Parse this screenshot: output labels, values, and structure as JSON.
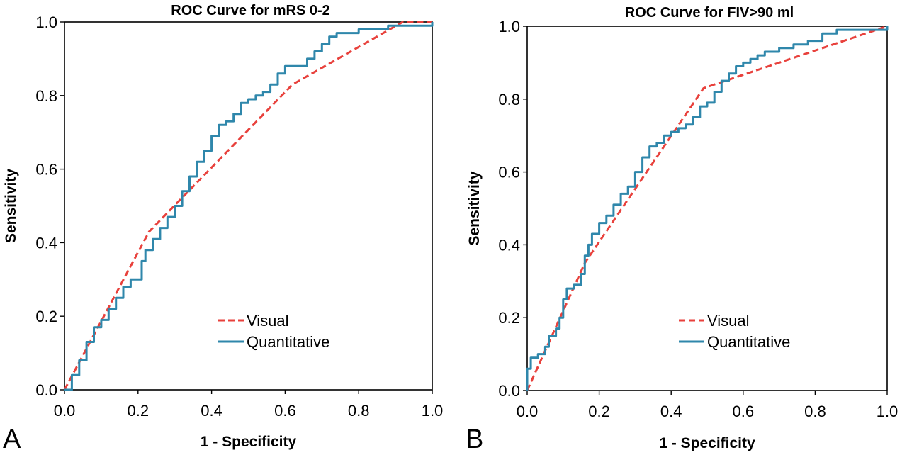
{
  "chart_data": [
    {
      "type": "line",
      "panel_label": "A",
      "title": "ROC Curve for mRS 0-2",
      "xlabel": "1 - Specificity",
      "ylabel": "Sensitivity",
      "xlim": [
        0,
        1
      ],
      "ylim": [
        0,
        1
      ],
      "x_ticks": [
        "0.0",
        "0.2",
        "0.4",
        "0.6",
        "0.8",
        "1.0"
      ],
      "y_ticks": [
        "0.0",
        "0.2",
        "0.4",
        "0.6",
        "0.8",
        "1.0"
      ],
      "legend_position": "bottom-right",
      "grid": false,
      "series": [
        {
          "name": "Visual",
          "color": "#e8413c",
          "style": "dashed",
          "points": [
            [
              0,
              0
            ],
            [
              0.23,
              0.43
            ],
            [
              0.62,
              0.83
            ],
            [
              0.92,
              1.0
            ],
            [
              1.0,
              1.0
            ]
          ]
        },
        {
          "name": "Quantitative",
          "color": "#2f87ab",
          "style": "step",
          "points": [
            [
              0,
              0
            ],
            [
              0.02,
              0.04
            ],
            [
              0.04,
              0.08
            ],
            [
              0.06,
              0.13
            ],
            [
              0.08,
              0.17
            ],
            [
              0.1,
              0.19
            ],
            [
              0.12,
              0.22
            ],
            [
              0.14,
              0.25
            ],
            [
              0.16,
              0.28
            ],
            [
              0.18,
              0.3
            ],
            [
              0.2,
              0.3
            ],
            [
              0.21,
              0.35
            ],
            [
              0.22,
              0.38
            ],
            [
              0.24,
              0.41
            ],
            [
              0.26,
              0.44
            ],
            [
              0.28,
              0.47
            ],
            [
              0.3,
              0.5
            ],
            [
              0.32,
              0.54
            ],
            [
              0.34,
              0.58
            ],
            [
              0.36,
              0.62
            ],
            [
              0.38,
              0.65
            ],
            [
              0.4,
              0.69
            ],
            [
              0.42,
              0.72
            ],
            [
              0.44,
              0.73
            ],
            [
              0.46,
              0.75
            ],
            [
              0.48,
              0.78
            ],
            [
              0.5,
              0.79
            ],
            [
              0.52,
              0.8
            ],
            [
              0.54,
              0.81
            ],
            [
              0.56,
              0.83
            ],
            [
              0.58,
              0.86
            ],
            [
              0.6,
              0.88
            ],
            [
              0.62,
              0.88
            ],
            [
              0.64,
              0.88
            ],
            [
              0.66,
              0.9
            ],
            [
              0.68,
              0.92
            ],
            [
              0.7,
              0.94
            ],
            [
              0.72,
              0.96
            ],
            [
              0.74,
              0.97
            ],
            [
              0.76,
              0.97
            ],
            [
              0.8,
              0.98
            ],
            [
              0.88,
              0.99
            ],
            [
              0.96,
              0.99
            ],
            [
              1.0,
              1.0
            ]
          ]
        }
      ]
    },
    {
      "type": "line",
      "panel_label": "B",
      "title": "ROC Curve for FIV>90 ml",
      "xlabel": "1 - Specificity",
      "ylabel": "Sensitivity",
      "xlim": [
        0,
        1
      ],
      "ylim": [
        0,
        1
      ],
      "x_ticks": [
        "0.0",
        "0.2",
        "0.4",
        "0.6",
        "0.8",
        "1.0"
      ],
      "y_ticks": [
        "0.0",
        "0.2",
        "0.4",
        "0.6",
        "0.8",
        "1.0"
      ],
      "legend_position": "bottom-right",
      "grid": false,
      "series": [
        {
          "name": "Visual",
          "color": "#e8413c",
          "style": "dashed",
          "points": [
            [
              0,
              0
            ],
            [
              0.16,
              0.35
            ],
            [
              0.49,
              0.83
            ],
            [
              1.0,
              1.0
            ]
          ]
        },
        {
          "name": "Quantitative",
          "color": "#2f87ab",
          "style": "step",
          "points": [
            [
              0,
              0
            ],
            [
              0.0,
              0.06
            ],
            [
              0.01,
              0.09
            ],
            [
              0.03,
              0.1
            ],
            [
              0.05,
              0.12
            ],
            [
              0.06,
              0.15
            ],
            [
              0.08,
              0.17
            ],
            [
              0.09,
              0.2
            ],
            [
              0.1,
              0.25
            ],
            [
              0.11,
              0.28
            ],
            [
              0.13,
              0.29
            ],
            [
              0.15,
              0.32
            ],
            [
              0.16,
              0.37
            ],
            [
              0.17,
              0.4
            ],
            [
              0.18,
              0.43
            ],
            [
              0.2,
              0.46
            ],
            [
              0.22,
              0.48
            ],
            [
              0.24,
              0.51
            ],
            [
              0.26,
              0.54
            ],
            [
              0.28,
              0.56
            ],
            [
              0.3,
              0.6
            ],
            [
              0.32,
              0.64
            ],
            [
              0.34,
              0.67
            ],
            [
              0.36,
              0.68
            ],
            [
              0.38,
              0.7
            ],
            [
              0.4,
              0.71
            ],
            [
              0.42,
              0.72
            ],
            [
              0.44,
              0.73
            ],
            [
              0.46,
              0.75
            ],
            [
              0.48,
              0.78
            ],
            [
              0.5,
              0.79
            ],
            [
              0.52,
              0.82
            ],
            [
              0.54,
              0.85
            ],
            [
              0.56,
              0.87
            ],
            [
              0.58,
              0.89
            ],
            [
              0.6,
              0.9
            ],
            [
              0.62,
              0.91
            ],
            [
              0.64,
              0.92
            ],
            [
              0.66,
              0.93
            ],
            [
              0.7,
              0.94
            ],
            [
              0.74,
              0.95
            ],
            [
              0.78,
              0.96
            ],
            [
              0.82,
              0.98
            ],
            [
              0.86,
              0.99
            ],
            [
              0.92,
              0.99
            ],
            [
              1.0,
              1.0
            ]
          ]
        }
      ]
    }
  ]
}
